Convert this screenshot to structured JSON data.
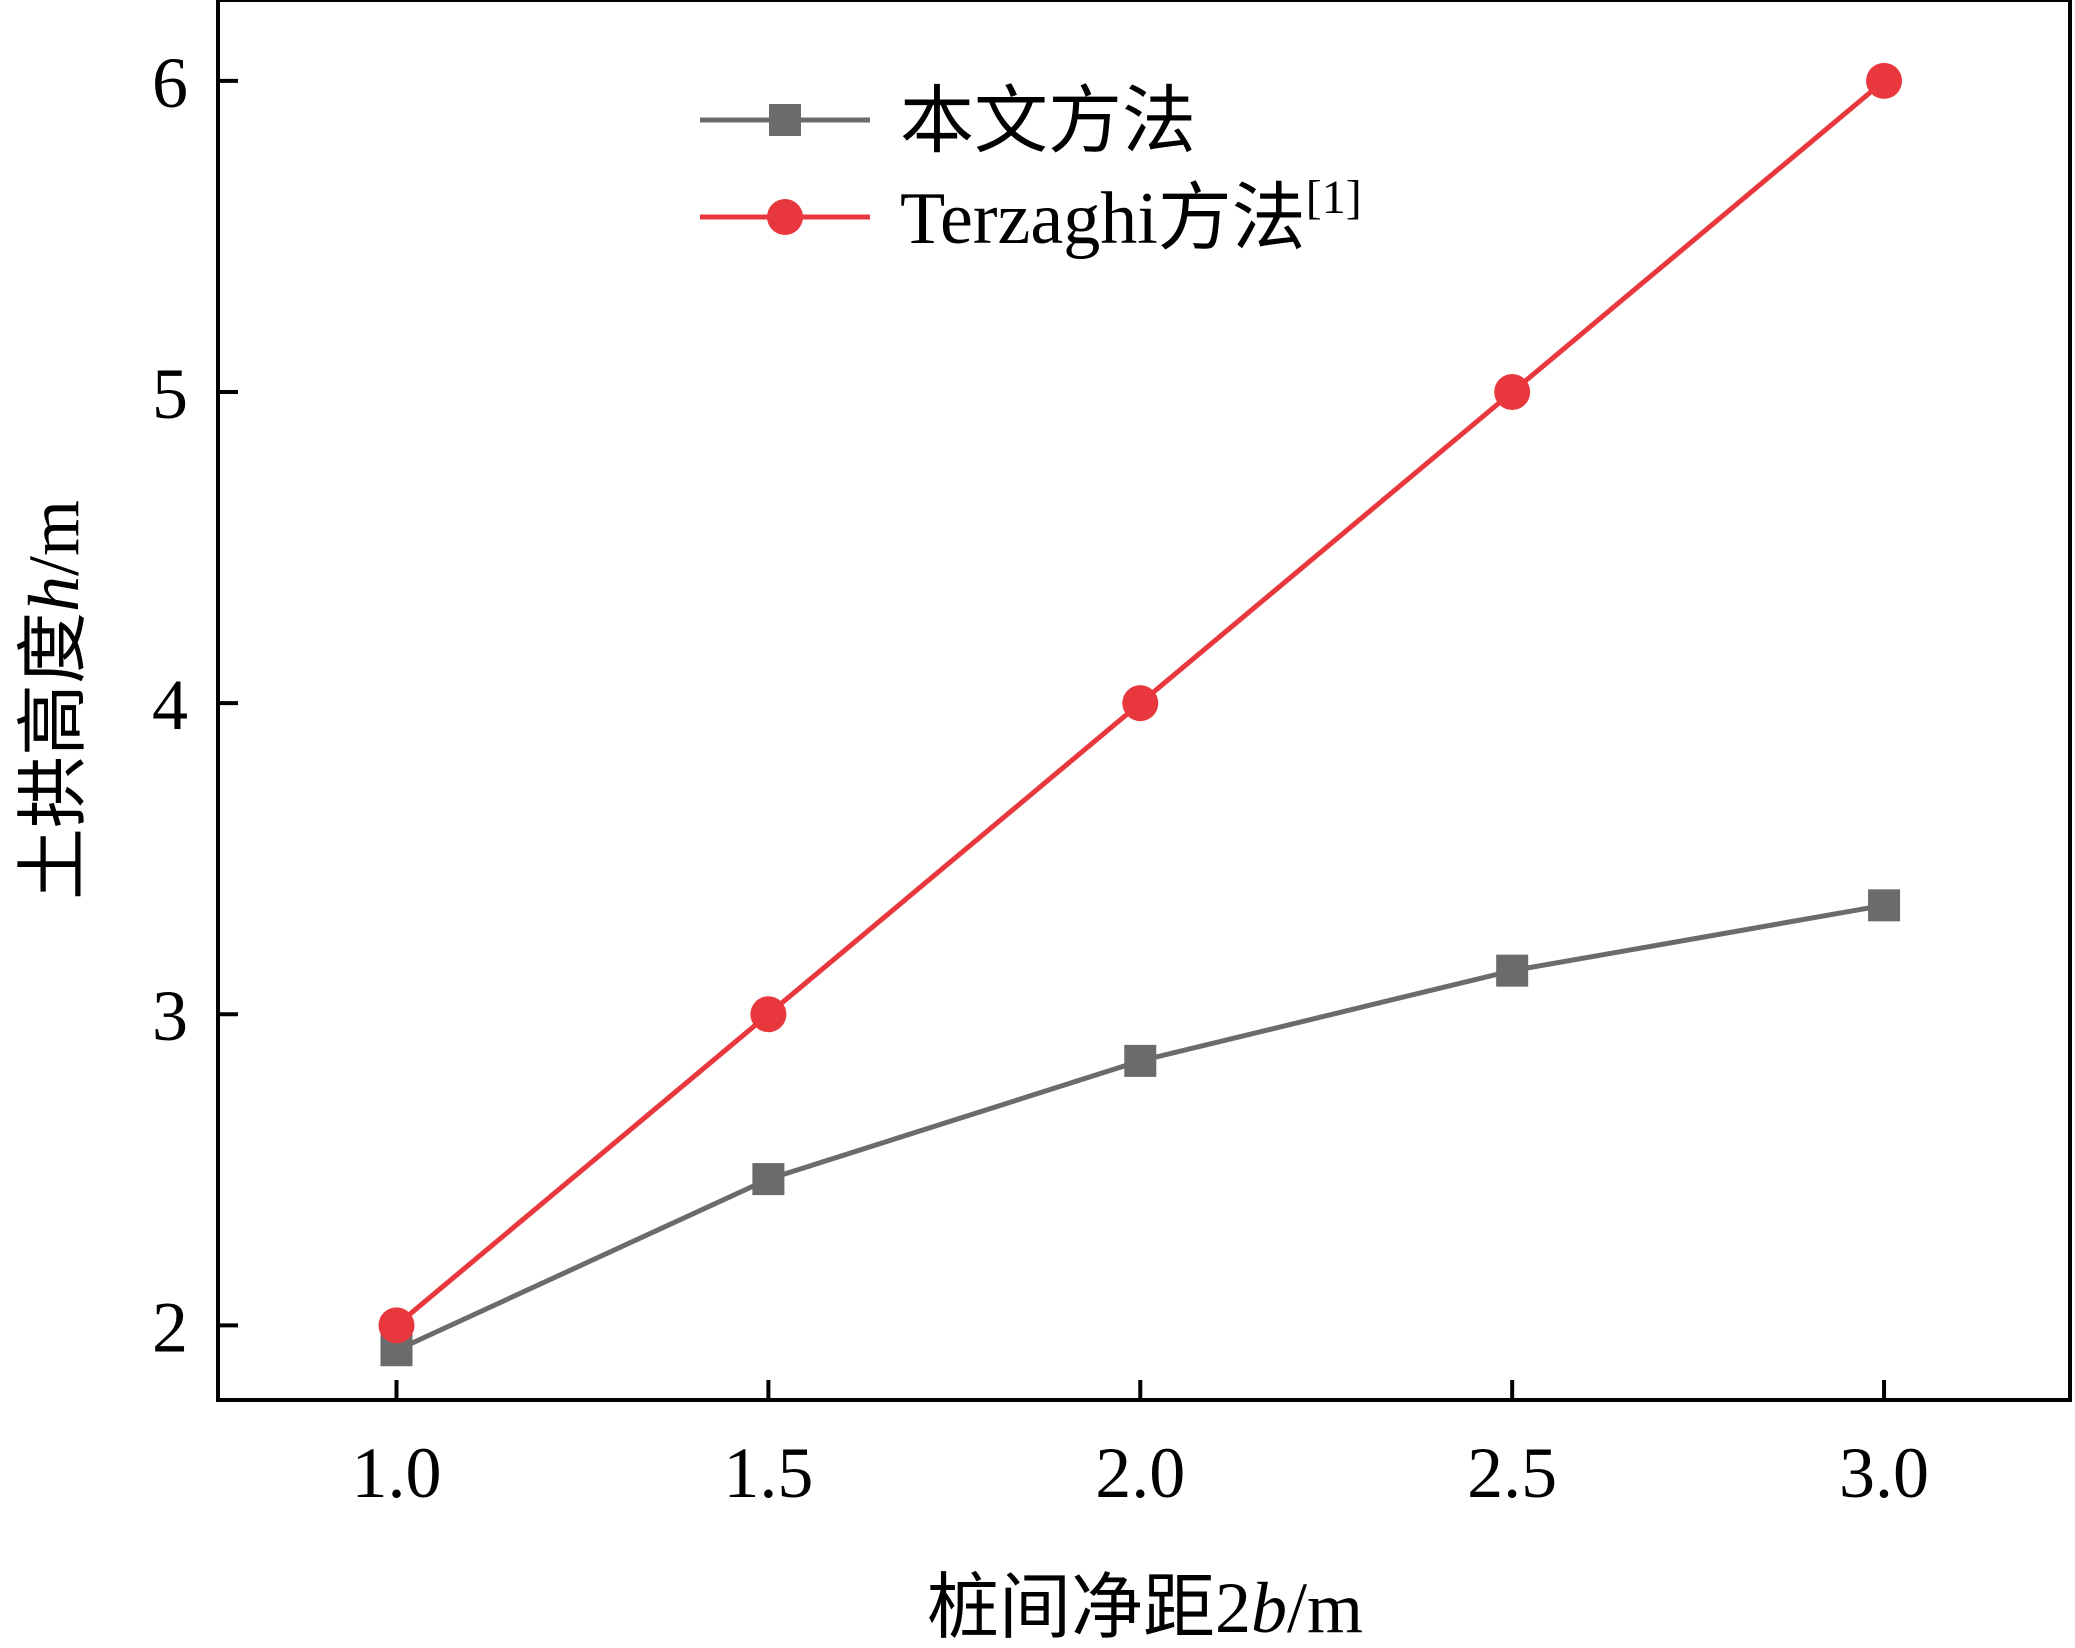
{
  "chart_data": {
    "type": "line",
    "x": [
      1.0,
      1.5,
      2.0,
      2.5,
      3.0
    ],
    "x_tick_labels": [
      "1.0",
      "1.5",
      "2.0",
      "2.5",
      "3.0"
    ],
    "y_ticks": [
      2,
      3,
      4,
      5,
      6
    ],
    "y_tick_labels": [
      "2",
      "3",
      "4",
      "5",
      "6"
    ],
    "xlim": [
      0.76,
      3.25
    ],
    "ylim": [
      1.76,
      6.26
    ],
    "xlabel_prefix": "桩间净距2",
    "xlabel_italic": "b",
    "xlabel_suffix": "/m",
    "ylabel_prefix": "土拱高度",
    "ylabel_italic": "h",
    "ylabel_suffix": "/m",
    "grid": false,
    "legend_position": "top-left",
    "series": [
      {
        "name": "本文方法",
        "name_superscript": "",
        "marker": "square",
        "color": "#6b6b6b",
        "values": [
          1.92,
          2.47,
          2.85,
          3.14,
          3.35
        ]
      },
      {
        "name": "Terzaghi方法",
        "name_superscript": "[1]",
        "marker": "circle",
        "color": "#e8383d",
        "values": [
          2.0,
          3.0,
          4.0,
          5.0,
          6.0
        ]
      }
    ]
  }
}
